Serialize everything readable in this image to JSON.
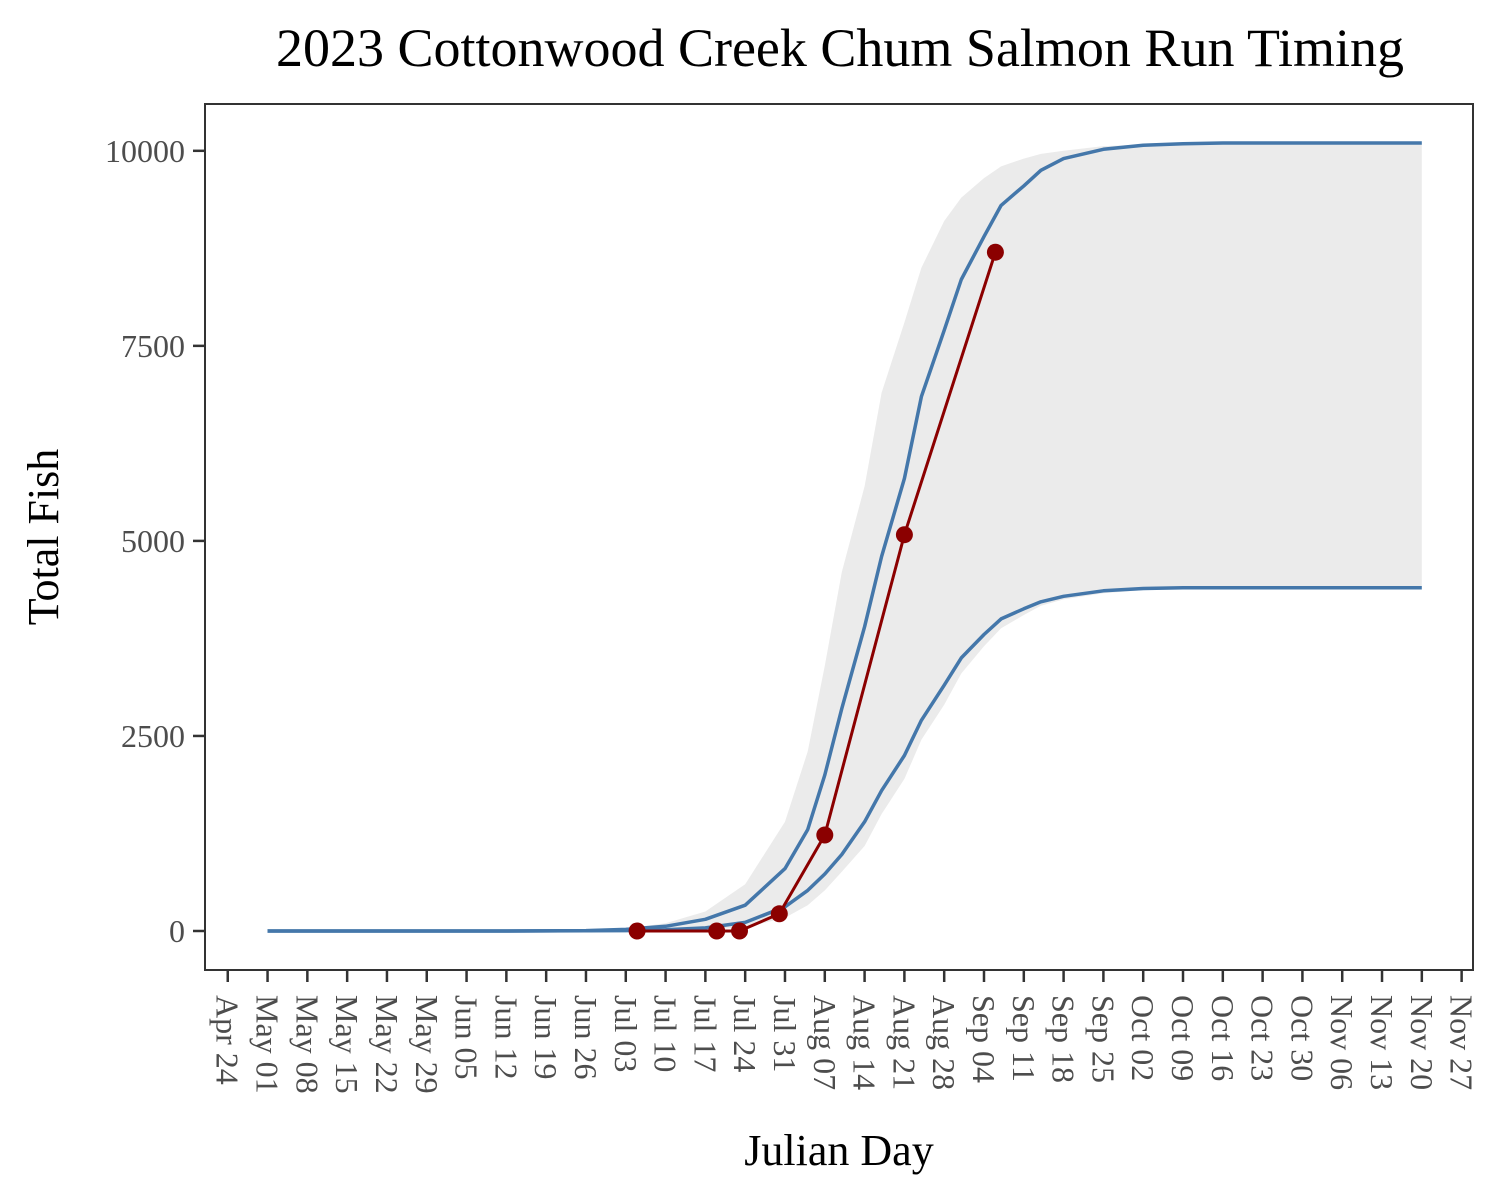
{
  "chart_data": {
    "type": "line",
    "title": "2023 Cottonwood Creek Chum Salmon Run Timing",
    "xlabel": "Julian Day",
    "ylabel": "Total Fish",
    "x_axis_type": "date",
    "xlim": [
      "2023-04-20",
      "2023-11-29"
    ],
    "ylim": [
      -500,
      10600
    ],
    "y_ticks": [
      0,
      2500,
      5000,
      7500,
      10000
    ],
    "x_ticks": [
      "2023-04-24",
      "2023-05-01",
      "2023-05-08",
      "2023-05-15",
      "2023-05-22",
      "2023-05-29",
      "2023-06-05",
      "2023-06-12",
      "2023-06-19",
      "2023-06-26",
      "2023-07-03",
      "2023-07-10",
      "2023-07-17",
      "2023-07-24",
      "2023-07-31",
      "2023-08-07",
      "2023-08-14",
      "2023-08-21",
      "2023-08-28",
      "2023-09-04",
      "2023-09-11",
      "2023-09-18",
      "2023-09-25",
      "2023-10-02",
      "2023-10-09",
      "2023-10-16",
      "2023-10-23",
      "2023-10-30",
      "2023-11-06",
      "2023-11-13",
      "2023-11-20",
      "2023-11-27"
    ],
    "x_tick_labels": [
      "Apr 24",
      "May 01",
      "May 08",
      "May 15",
      "May 22",
      "May 29",
      "Jun 05",
      "Jun 12",
      "Jun 19",
      "Jun 26",
      "Jul 03",
      "Jul 10",
      "Jul 17",
      "Jul 24",
      "Jul 31",
      "Aug 07",
      "Aug 14",
      "Aug 21",
      "Aug 28",
      "Sep 04",
      "Sep 11",
      "Sep 18",
      "Sep 25",
      "Oct 02",
      "Oct 09",
      "Oct 16",
      "Oct 23",
      "Oct 30",
      "Nov 06",
      "Nov 13",
      "Nov 20",
      "Nov 27"
    ],
    "grid": false,
    "series": [
      {
        "type": "band",
        "color": "#ebebeb",
        "x": [
          "2023-06-12",
          "2023-07-03",
          "2023-07-10",
          "2023-07-17",
          "2023-07-24",
          "2023-07-31",
          "2023-08-04",
          "2023-08-07",
          "2023-08-10",
          "2023-08-14",
          "2023-08-17",
          "2023-08-21",
          "2023-08-24",
          "2023-08-28",
          "2023-08-31",
          "2023-09-04",
          "2023-09-07",
          "2023-09-11",
          "2023-09-14",
          "2023-09-18",
          "2023-09-25",
          "2023-10-02",
          "2023-10-09",
          "2023-10-16",
          "2023-11-20"
        ],
        "lower": [
          0,
          0,
          5,
          15,
          45,
          170,
          330,
          520,
          760,
          1090,
          1500,
          1950,
          2450,
          2900,
          3300,
          3650,
          3880,
          4050,
          4170,
          4250,
          4330,
          4370,
          4390,
          4400,
          4400
        ],
        "upper": [
          0,
          30,
          100,
          250,
          600,
          1400,
          2300,
          3400,
          4600,
          5700,
          6900,
          7800,
          8500,
          9100,
          9400,
          9650,
          9800,
          9900,
          9960,
          10000,
          10060,
          10080,
          10090,
          10100,
          10100
        ]
      },
      {
        "type": "line",
        "color": "#4477aa",
        "x": [
          "2023-05-01",
          "2023-06-12",
          "2023-06-26",
          "2023-07-03",
          "2023-07-10",
          "2023-07-17",
          "2023-07-24",
          "2023-07-31",
          "2023-08-04",
          "2023-08-07",
          "2023-08-10",
          "2023-08-14",
          "2023-08-17",
          "2023-08-21",
          "2023-08-24",
          "2023-08-28",
          "2023-08-31",
          "2023-09-04",
          "2023-09-07",
          "2023-09-11",
          "2023-09-14",
          "2023-09-18",
          "2023-09-25",
          "2023-10-02",
          "2023-10-09",
          "2023-10-16",
          "2023-11-20"
        ],
        "values": [
          0,
          0,
          5,
          20,
          60,
          150,
          330,
          800,
          1300,
          2000,
          2850,
          3900,
          4800,
          5800,
          6850,
          7700,
          8350,
          8900,
          9300,
          9550,
          9750,
          9900,
          10020,
          10070,
          10090,
          10100,
          10100
        ]
      },
      {
        "type": "line",
        "color": "#4477aa",
        "x": [
          "2023-05-01",
          "2023-06-12",
          "2023-07-03",
          "2023-07-10",
          "2023-07-17",
          "2023-07-24",
          "2023-07-31",
          "2023-08-04",
          "2023-08-07",
          "2023-08-10",
          "2023-08-14",
          "2023-08-17",
          "2023-08-21",
          "2023-08-24",
          "2023-08-28",
          "2023-08-31",
          "2023-09-04",
          "2023-09-07",
          "2023-09-11",
          "2023-09-14",
          "2023-09-18",
          "2023-09-25",
          "2023-10-02",
          "2023-10-09",
          "2023-10-16",
          "2023-11-20"
        ],
        "values": [
          0,
          0,
          5,
          15,
          40,
          110,
          310,
          520,
          730,
          980,
          1400,
          1800,
          2250,
          2700,
          3150,
          3500,
          3800,
          4000,
          4130,
          4220,
          4290,
          4360,
          4390,
          4400,
          4400,
          4400
        ]
      },
      {
        "type": "line_points",
        "color": "#8b0000",
        "x": [
          "2023-07-05",
          "2023-07-19",
          "2023-07-23",
          "2023-07-30",
          "2023-08-07",
          "2023-08-21",
          "2023-09-06"
        ],
        "values": [
          0,
          0,
          0,
          220,
          1230,
          5080,
          8700
        ]
      }
    ]
  }
}
